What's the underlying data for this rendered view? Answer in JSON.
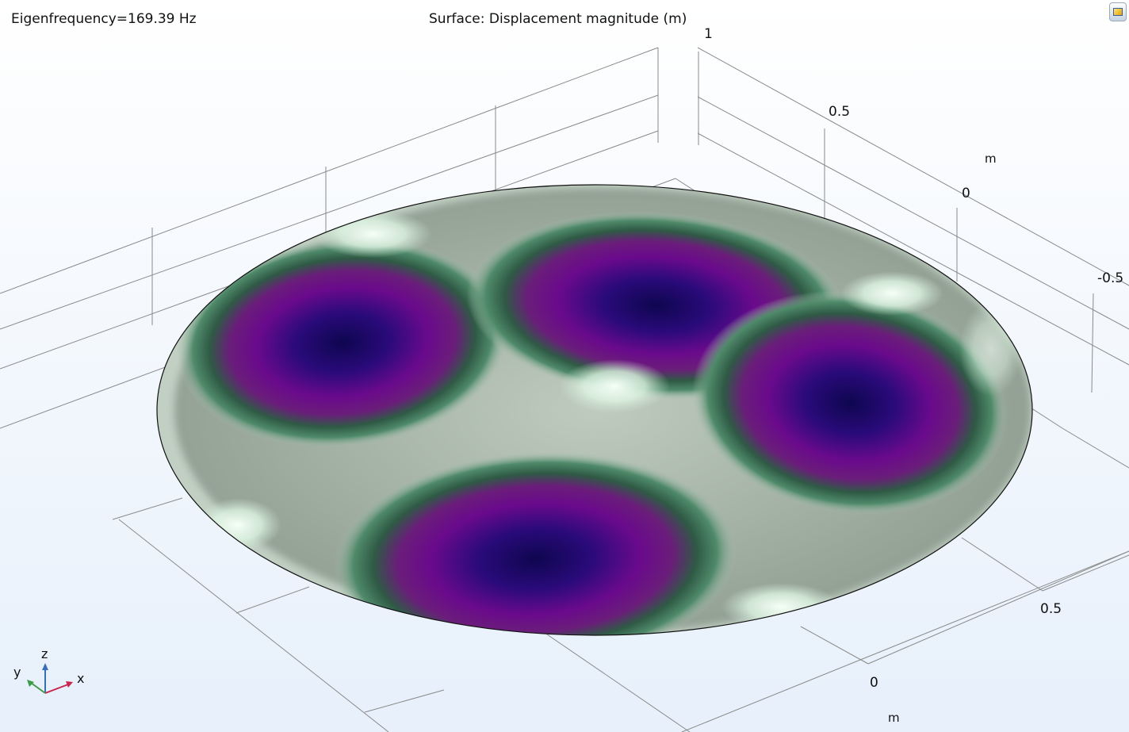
{
  "header": {
    "eigenfrequency": "Eigenfrequency=169.39 Hz",
    "title": "Surface: Displacement magnitude (m)"
  },
  "axes": {
    "z_ticks": [
      "1",
      "0.5",
      "0",
      "-0.5"
    ],
    "x_ticks": [
      "0.5",
      "0"
    ],
    "unit": "m"
  },
  "triad": {
    "x": "x",
    "y": "y",
    "z": "z"
  },
  "toolbar": {
    "icon": "camera-view-icon"
  },
  "colors": {
    "nodal_highlight": "#f1fff4",
    "mid_green": "#2f5a45",
    "gray": "#9aa79d",
    "purple": "#6a0a8c",
    "dark_blue": "#0e0650",
    "grid": "#8a8a8a"
  }
}
